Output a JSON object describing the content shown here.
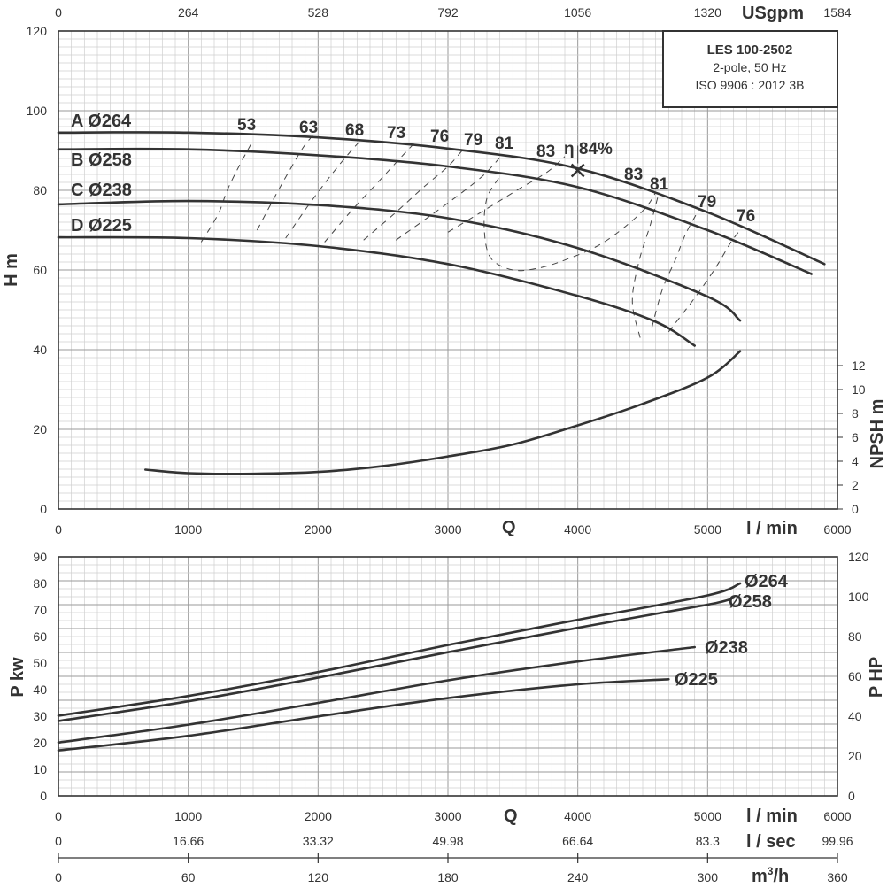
{
  "info_box": {
    "model": "LES 100-2502",
    "line1": "2-pole, 50 Hz",
    "line2": "ISO 9906 : 2012 3B"
  },
  "axis_text": {
    "q_symbol": "Q",
    "x_unit_lmin": "l / min",
    "x_unit_lsec": "l / sec",
    "x_unit_m3h": "m",
    "x_unit_m3h_sup": "3",
    "x_unit_m3h_tail": "/h",
    "x_unit_usgpm": "USgpm",
    "y_head": "H m",
    "y_npsh": "NPSH m",
    "y_power_kw": "P kw",
    "y_power_hp": "P HP"
  },
  "chart_data": [
    {
      "type": "line",
      "name": "head",
      "x_unit": "l/min",
      "xlim": [
        0,
        6000
      ],
      "ylim": [
        0,
        120
      ],
      "x_ticks": [
        0,
        1000,
        2000,
        3000,
        4000,
        5000,
        6000
      ],
      "y_ticks": [
        0,
        20,
        40,
        60,
        80,
        100,
        120
      ],
      "usgpm_ticks": [
        "0",
        "264",
        "528",
        "792",
        "1056",
        "1320",
        "1584"
      ],
      "grid": true,
      "series": [
        {
          "name": "A Ø264",
          "points": [
            [
              0,
              94.5
            ],
            [
              1000,
              94.5
            ],
            [
              2000,
              93.3
            ],
            [
              3000,
              90.5
            ],
            [
              4000,
              85.5
            ],
            [
              5000,
              74.5
            ],
            [
              5900,
              61.5
            ]
          ]
        },
        {
          "name": "B Ø258",
          "points": [
            [
              0,
              90.3
            ],
            [
              1000,
              90.3
            ],
            [
              2000,
              88.8
            ],
            [
              3000,
              86
            ],
            [
              4000,
              80.8
            ],
            [
              5000,
              70
            ],
            [
              5800,
              59
            ]
          ]
        },
        {
          "name": "C Ø238",
          "points": [
            [
              0,
              76.5
            ],
            [
              1000,
              77.3
            ],
            [
              2000,
              76.3
            ],
            [
              3000,
              73
            ],
            [
              4000,
              65.5
            ],
            [
              5000,
              53.3
            ],
            [
              5250,
              47.3
            ]
          ]
        },
        {
          "name": "D Ø225",
          "points": [
            [
              0,
              68.2
            ],
            [
              1000,
              68
            ],
            [
              2000,
              66
            ],
            [
              3000,
              61.5
            ],
            [
              4000,
              53.5
            ],
            [
              4600,
              47
            ],
            [
              4900,
              41
            ]
          ]
        }
      ],
      "efficiency_labels": [
        "53",
        "63",
        "68",
        "73",
        "76",
        "79",
        "81",
        "83",
        "83",
        "81",
        "79",
        "76"
      ],
      "bep": {
        "label": "η 84%",
        "q": 4000,
        "h": 85
      },
      "annotations": [
        "A Ø264",
        "B Ø258",
        "C Ø238",
        "D Ø225"
      ]
    },
    {
      "type": "line",
      "name": "npsh",
      "x_unit": "l/min",
      "ylim": [
        0,
        12
      ],
      "y_ticks": [
        0,
        2,
        4,
        6,
        8,
        10,
        12
      ],
      "series": [
        {
          "name": "NPSH",
          "points": [
            [
              670,
              3.3
            ],
            [
              1000,
              3.0
            ],
            [
              1500,
              2.95
            ],
            [
              2000,
              3.1
            ],
            [
              2500,
              3.6
            ],
            [
              3000,
              4.4
            ],
            [
              3500,
              5.4
            ],
            [
              4000,
              7.0
            ],
            [
              4500,
              8.8
            ],
            [
              5000,
              11.0
            ],
            [
              5250,
              13.2
            ]
          ]
        }
      ]
    },
    {
      "type": "line",
      "name": "power",
      "x_unit": "l/min",
      "xlim": [
        0,
        6000
      ],
      "ylim": [
        0,
        90
      ],
      "y_ticks": [
        0,
        10,
        20,
        30,
        40,
        50,
        60,
        70,
        80,
        90
      ],
      "hp_ticks": [
        0,
        20,
        40,
        60,
        80,
        100,
        120
      ],
      "lsec_ticks": [
        "0",
        "16.66",
        "33.32",
        "49.98",
        "66.64",
        "83.3",
        "99.96"
      ],
      "m3h_ticks": [
        "0",
        "60",
        "120",
        "180",
        "240",
        "300",
        "360"
      ],
      "grid": true,
      "series": [
        {
          "name": "Ø264",
          "points": [
            [
              0,
              30.2
            ],
            [
              1000,
              37.6
            ],
            [
              2000,
              46.6
            ],
            [
              3000,
              56.8
            ],
            [
              4000,
              66.3
            ],
            [
              5000,
              75.5
            ],
            [
              5250,
              80
            ]
          ]
        },
        {
          "name": "Ø258",
          "points": [
            [
              0,
              28.2
            ],
            [
              1000,
              35.6
            ],
            [
              2000,
              44.5
            ],
            [
              3000,
              54.1
            ],
            [
              4000,
              63.3
            ],
            [
              5000,
              72
            ],
            [
              5200,
              74.6
            ]
          ]
        },
        {
          "name": "Ø238",
          "points": [
            [
              0,
              20.1
            ],
            [
              1000,
              26.8
            ],
            [
              2000,
              35
            ],
            [
              3000,
              43.5
            ],
            [
              4000,
              50.6
            ],
            [
              4900,
              56
            ]
          ]
        },
        {
          "name": "Ø225",
          "points": [
            [
              0,
              17.1
            ],
            [
              1000,
              22.6
            ],
            [
              2000,
              29.9
            ],
            [
              3000,
              36.8
            ],
            [
              4000,
              42
            ],
            [
              4700,
              43.9
            ]
          ]
        }
      ]
    }
  ]
}
